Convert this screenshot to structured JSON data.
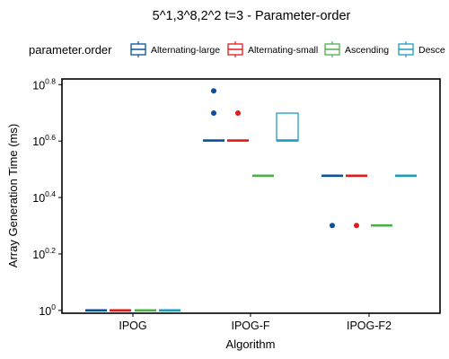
{
  "chart_data": {
    "type": "boxplot",
    "title": "5^1,3^8,2^2 t=3 - Parameter-order",
    "xlabel": "Algorithm",
    "ylabel": "Array Generation Time (ms)",
    "y_scale": "log10",
    "y_log_range": [
      -0.01,
      0.82
    ],
    "y_ticks": [
      {
        "exp": 0,
        "base": "10",
        "sup": "0"
      },
      {
        "exp": 0.2,
        "base": "10",
        "sup": "0.2"
      },
      {
        "exp": 0.4,
        "base": "10",
        "sup": "0.4"
      },
      {
        "exp": 0.6,
        "base": "10",
        "sup": "0.6"
      },
      {
        "exp": 0.8,
        "base": "10",
        "sup": "0.8"
      }
    ],
    "categories": [
      "IPOG",
      "IPOG-F",
      "IPOG-F2"
    ],
    "legend": {
      "title": "parameter.order",
      "position": "top"
    },
    "series": [
      {
        "name": "Alternating-large",
        "label": "Alternating-large",
        "color": "#08519c",
        "boxes": [
          {
            "category": "IPOG",
            "q1": 0,
            "median": 0,
            "q3": 0,
            "outliers": []
          },
          {
            "category": "IPOG-F",
            "q1": 0.602,
            "median": 0.602,
            "q3": 0.602,
            "outliers": [
              0.699,
              0.778
            ]
          },
          {
            "category": "IPOG-F2",
            "q1": 0.477,
            "median": 0.477,
            "q3": 0.477,
            "outliers": [
              0.301
            ]
          }
        ]
      },
      {
        "name": "Alternating-small",
        "label": "Alternating-small",
        "color": "#e31a1c",
        "boxes": [
          {
            "category": "IPOG",
            "q1": 0,
            "median": 0,
            "q3": 0,
            "outliers": []
          },
          {
            "category": "IPOG-F",
            "q1": 0.602,
            "median": 0.602,
            "q3": 0.602,
            "outliers": [
              0.699
            ]
          },
          {
            "category": "IPOG-F2",
            "q1": 0.477,
            "median": 0.477,
            "q3": 0.477,
            "outliers": [
              0.301
            ]
          }
        ]
      },
      {
        "name": "Ascending",
        "label": "Ascending",
        "color": "#4daf4a",
        "boxes": [
          {
            "category": "IPOG",
            "q1": 0,
            "median": 0,
            "q3": 0,
            "outliers": []
          },
          {
            "category": "IPOG-F",
            "q1": 0.477,
            "median": 0.477,
            "q3": 0.477,
            "outliers": []
          },
          {
            "category": "IPOG-F2",
            "q1": 0.301,
            "median": 0.301,
            "q3": 0.301,
            "outliers": []
          }
        ]
      },
      {
        "name": "Descending",
        "label": "Desce",
        "color": "#1f9bbf",
        "boxes": [
          {
            "category": "IPOG",
            "q1": 0,
            "median": 0,
            "q3": 0,
            "outliers": []
          },
          {
            "category": "IPOG-F",
            "q1": 0.602,
            "median": 0.602,
            "q3": 0.699,
            "outliers": []
          },
          {
            "category": "IPOG-F2",
            "q1": 0.477,
            "median": 0.477,
            "q3": 0.477,
            "outliers": []
          }
        ]
      }
    ]
  }
}
